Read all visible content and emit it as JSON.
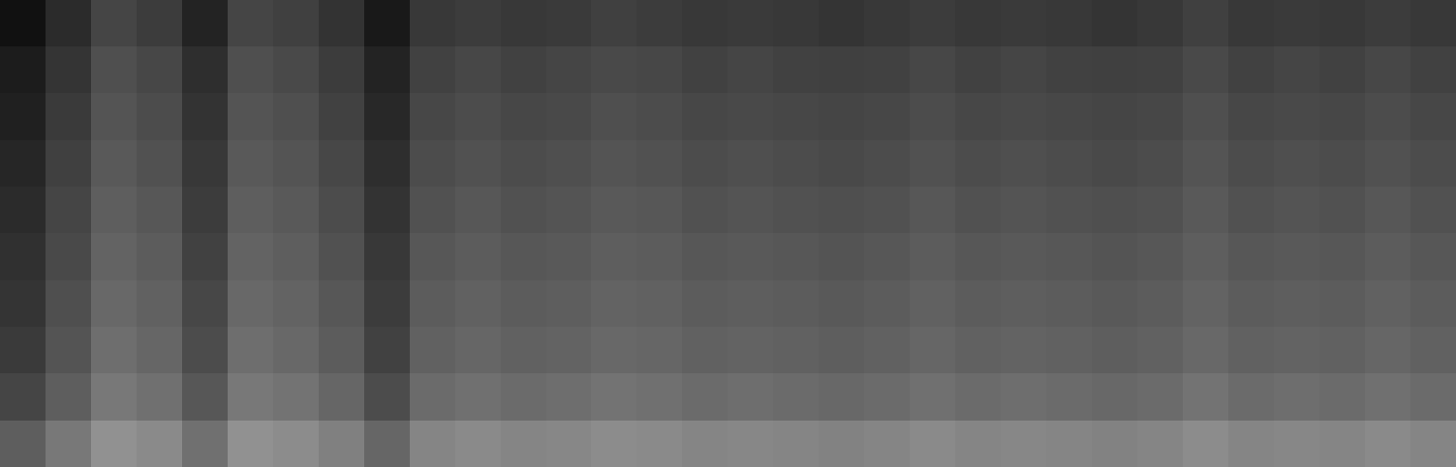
{
  "chart_data": {
    "type": "heatmap",
    "tick_labels": false,
    "color": "gray",
    "clim": [
      0,
      100
    ],
    "cells": [
      [
        7,
        17,
        27,
        24,
        14,
        27,
        25,
        20,
        10,
        22,
        24,
        22,
        23,
        25,
        24,
        22,
        23,
        22,
        21,
        22,
        24,
        22,
        23,
        22,
        21,
        22,
        25,
        22,
        23,
        22,
        24,
        22
      ],
      [
        11,
        21,
        31,
        28,
        18,
        31,
        29,
        24,
        14,
        26,
        28,
        26,
        27,
        29,
        28,
        26,
        27,
        26,
        25,
        26,
        28,
        26,
        27,
        26,
        25,
        26,
        29,
        26,
        27,
        26,
        28,
        26
      ],
      [
        13,
        23,
        33,
        30,
        20,
        33,
        31,
        26,
        16,
        28,
        30,
        28,
        29,
        31,
        30,
        28,
        29,
        28,
        27,
        28,
        30,
        28,
        29,
        28,
        27,
        28,
        31,
        28,
        29,
        28,
        30,
        28
      ],
      [
        15,
        25,
        35,
        32,
        22,
        35,
        33,
        28,
        18,
        30,
        32,
        30,
        31,
        33,
        32,
        30,
        31,
        30,
        29,
        30,
        32,
        30,
        31,
        30,
        29,
        30,
        33,
        30,
        31,
        30,
        32,
        30
      ],
      [
        17,
        27,
        37,
        34,
        24,
        37,
        35,
        30,
        20,
        32,
        34,
        32,
        33,
        35,
        34,
        32,
        33,
        32,
        31,
        32,
        34,
        32,
        33,
        32,
        31,
        32,
        35,
        32,
        33,
        32,
        34,
        32
      ],
      [
        19,
        29,
        39,
        36,
        26,
        39,
        37,
        32,
        22,
        34,
        36,
        34,
        35,
        37,
        36,
        34,
        35,
        34,
        33,
        34,
        36,
        34,
        35,
        34,
        33,
        34,
        37,
        34,
        35,
        34,
        36,
        34
      ],
      [
        21,
        31,
        41,
        38,
        28,
        41,
        39,
        34,
        24,
        36,
        38,
        36,
        37,
        39,
        38,
        36,
        37,
        36,
        35,
        36,
        38,
        36,
        37,
        36,
        35,
        36,
        39,
        36,
        37,
        36,
        38,
        36
      ],
      [
        23,
        33,
        43,
        40,
        30,
        43,
        41,
        36,
        26,
        38,
        40,
        38,
        39,
        41,
        40,
        38,
        39,
        38,
        37,
        38,
        40,
        38,
        39,
        38,
        37,
        38,
        41,
        38,
        39,
        38,
        40,
        38
      ],
      [
        27,
        37,
        47,
        44,
        34,
        47,
        45,
        40,
        30,
        42,
        44,
        42,
        43,
        45,
        44,
        42,
        43,
        42,
        41,
        42,
        44,
        42,
        43,
        42,
        41,
        42,
        45,
        42,
        43,
        42,
        44,
        42
      ],
      [
        37,
        47,
        57,
        54,
        44,
        57,
        55,
        50,
        40,
        52,
        54,
        52,
        53,
        55,
        54,
        52,
        53,
        52,
        51,
        52,
        54,
        52,
        53,
        52,
        51,
        52,
        55,
        52,
        53,
        52,
        54,
        52
      ]
    ]
  }
}
